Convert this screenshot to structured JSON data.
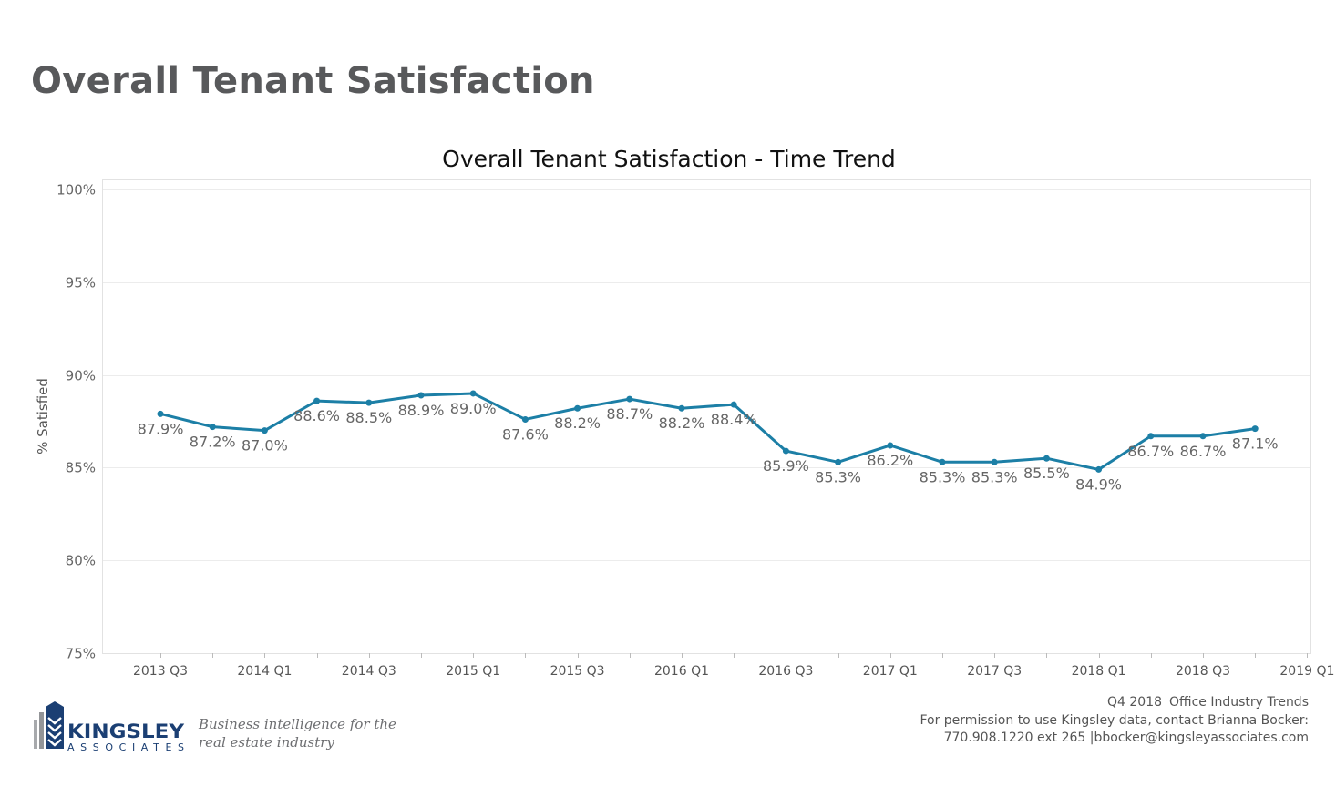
{
  "page": {
    "title": "Overall Tenant Satisfaction"
  },
  "chart_data": {
    "type": "line",
    "title": "Overall Tenant Satisfaction - Time Trend",
    "xlabel": "",
    "ylabel": "% Satisfied",
    "x_tick_labels": [
      "2013 Q3",
      "2014 Q1",
      "2014 Q3",
      "2015 Q1",
      "2015 Q3",
      "2016 Q1",
      "2016 Q3",
      "2017 Q1",
      "2017 Q3",
      "2018 Q1",
      "2018 Q3",
      "2019 Q1"
    ],
    "y_tick_labels": [
      "100%",
      "95%",
      "90%",
      "85%",
      "80%",
      "75%"
    ],
    "y_ticks": [
      100,
      95,
      90,
      85,
      80,
      75
    ],
    "ylim": [
      75,
      100
    ],
    "grid": true,
    "series": [
      {
        "color": "#1c7fa6",
        "x": [
          "2013 Q3",
          "2013 Q4",
          "2014 Q1",
          "2014 Q2",
          "2014 Q3",
          "2014 Q4",
          "2015 Q1",
          "2015 Q2",
          "2015 Q3",
          "2015 Q4",
          "2016 Q1",
          "2016 Q2",
          "2016 Q3",
          "2016 Q4",
          "2017 Q1",
          "2017 Q2",
          "2017 Q3",
          "2017 Q4",
          "2018 Q1",
          "2018 Q2",
          "2018 Q3",
          "2018 Q4"
        ],
        "values": [
          87.9,
          87.2,
          87.0,
          88.6,
          88.5,
          88.9,
          89.0,
          87.6,
          88.2,
          88.7,
          88.2,
          88.4,
          85.9,
          85.3,
          86.2,
          85.3,
          85.3,
          85.5,
          84.9,
          86.7,
          86.7,
          87.1
        ],
        "labels": [
          "87.9%",
          "87.2%",
          "87.0%",
          "88.6%",
          "88.5%",
          "88.9%",
          "89.0%",
          "87.6%",
          "88.2%",
          "88.7%",
          "88.2%",
          "88.4%",
          "85.9%",
          "85.3%",
          "86.2%",
          "85.3%",
          "85.3%",
          "85.5%",
          "84.9%",
          "86.7%",
          "86.7%",
          "87.1%"
        ]
      }
    ]
  },
  "logo": {
    "name": "KINGSLEY",
    "subname": "ASSOCIATES",
    "color": "#1b3f73"
  },
  "tagline": {
    "line1": "Business intelligence for the",
    "line2": "real estate industry"
  },
  "footer": {
    "period": "Q4 2018",
    "report": "Office Industry Trends",
    "permission": "For permission to use Kingsley data, contact Brianna Bocker:",
    "contact": "770.908.1220 ext 265 |bbocker@kingsleyassociates.com"
  }
}
